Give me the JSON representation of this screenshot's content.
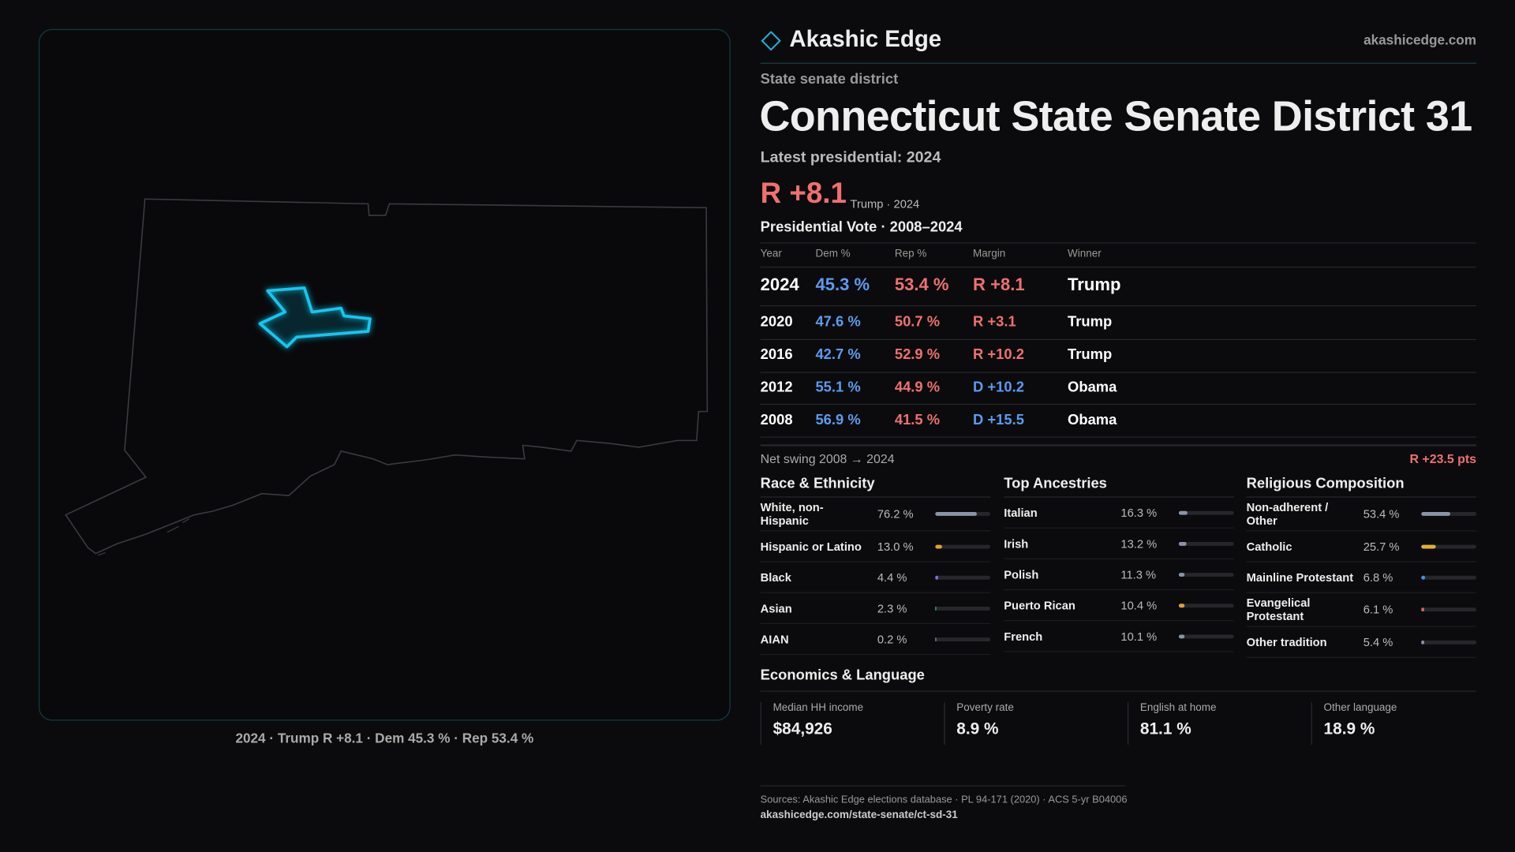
{
  "brand": {
    "name": "Akashic Edge",
    "url": "akashicedge.com"
  },
  "header": {
    "kicker": "State senate district",
    "title": "Connecticut State Senate District 31",
    "latest": "Latest presidential: 2024",
    "margin": "R +8.1",
    "margin_note": "Trump · 2024"
  },
  "map": {
    "caption": "2024 · Trump R +8.1 · Dem 45.3 % · Rep 53.4 %"
  },
  "vote_table": {
    "title": "Presidential Vote · 2008–2024",
    "columns": [
      "Year",
      "Dem %",
      "Rep %",
      "Margin",
      "Winner"
    ],
    "dem_color": "#5b9cf0",
    "rep_color": "#f07070",
    "rows": [
      {
        "year": "2024",
        "dem": "45.3 %",
        "rep": "53.4 %",
        "margin": "R +8.1",
        "margin_color": "#f07070",
        "winner": "Trump"
      },
      {
        "year": "2020",
        "dem": "47.6 %",
        "rep": "50.7 %",
        "margin": "R +3.1",
        "margin_color": "#f07070",
        "winner": "Trump"
      },
      {
        "year": "2016",
        "dem": "42.7 %",
        "rep": "52.9 %",
        "margin": "R +10.2",
        "margin_color": "#f07070",
        "winner": "Trump"
      },
      {
        "year": "2012",
        "dem": "55.1 %",
        "rep": "44.9 %",
        "margin": "D +10.2",
        "margin_color": "#5b9cf0",
        "winner": "Obama"
      },
      {
        "year": "2008",
        "dem": "56.9 %",
        "rep": "41.5 %",
        "margin": "D +15.5",
        "margin_color": "#5b9cf0",
        "winner": "Obama"
      }
    ]
  },
  "swing": {
    "label": "Net swing 2008 → 2024",
    "value": "R +23.5 pts"
  },
  "breakdowns": [
    {
      "title": "Race & Ethnicity",
      "rows": [
        {
          "name": "White, non-Hispanic",
          "value": 76.2,
          "label": "76.2 %",
          "color": "#8a94a6"
        },
        {
          "name": "Hispanic or Latino",
          "value": 13.0,
          "label": "13.0 %",
          "color": "#e0a030"
        },
        {
          "name": "Black",
          "value": 4.4,
          "label": "4.4 %",
          "color": "#8a6ae0"
        },
        {
          "name": "Asian",
          "value": 2.3,
          "label": "2.3 %",
          "color": "#3cc080"
        },
        {
          "name": "AIAN",
          "value": 0.2,
          "label": "0.2 %",
          "color": "#8a94a6"
        }
      ]
    },
    {
      "title": "Top Ancestries",
      "rows": [
        {
          "name": "Italian",
          "value": 16.3,
          "label": "16.3 %",
          "color": "#8a94a6"
        },
        {
          "name": "Irish",
          "value": 13.2,
          "label": "13.2 %",
          "color": "#8a94a6"
        },
        {
          "name": "Polish",
          "value": 11.3,
          "label": "11.3 %",
          "color": "#8a94a6"
        },
        {
          "name": "Puerto Rican",
          "value": 10.4,
          "label": "10.4 %",
          "color": "#e0a030"
        },
        {
          "name": "French",
          "value": 10.1,
          "label": "10.1 %",
          "color": "#8a94a6"
        }
      ]
    },
    {
      "title": "Religious Composition",
      "rows": [
        {
          "name": "Non-adherent / Other",
          "value": 53.4,
          "label": "53.4 %",
          "color": "#8a94a6"
        },
        {
          "name": "Catholic",
          "value": 25.7,
          "label": "25.7 %",
          "color": "#e0b030"
        },
        {
          "name": "Mainline Protestant",
          "value": 6.8,
          "label": "6.8 %",
          "color": "#4a90e0"
        },
        {
          "name": "Evangelical Protestant",
          "value": 6.1,
          "label": "6.1 %",
          "color": "#e06060"
        },
        {
          "name": "Other tradition",
          "value": 5.4,
          "label": "5.4 %",
          "color": "#8a94a6"
        }
      ]
    }
  ],
  "economics": {
    "title": "Economics & Language",
    "items": [
      {
        "label": "Median HH income",
        "value": "$84,926"
      },
      {
        "label": "Poverty rate",
        "value": "8.9 %"
      },
      {
        "label": "English at home",
        "value": "81.1 %"
      },
      {
        "label": "Other language",
        "value": "18.9 %"
      }
    ]
  },
  "footer": {
    "sources": "Sources: Akashic Edge elections database · PL 94-171 (2020) · ACS 5-yr B04006",
    "link": "akashicedge.com/state-senate/ct-sd-31"
  }
}
